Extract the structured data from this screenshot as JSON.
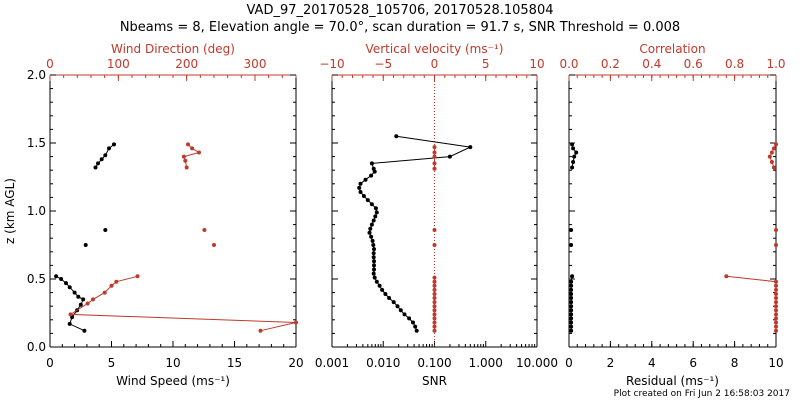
{
  "title_line1": "VAD_97_20170528_105706, 20170528.105804",
  "title_line2": "Nbeams = 8, Elevation angle = 70.0°, scan duration = 91.7 s, SNR Threshold = 0.008",
  "footer": "Plot created on Fri Jun  2 16:58:03 2017",
  "colors": {
    "primary": "#000000",
    "secondary": "#c0392b"
  },
  "chart_data": [
    {
      "type": "line",
      "ylabel": "z (km AGL)",
      "ylim": [
        0,
        2
      ],
      "yticks": [
        "0.0",
        "0.5",
        "1.0",
        "1.5",
        "2.0"
      ],
      "xlabel_bottom": "Wind Speed (ms⁻¹)",
      "xlim_bottom": [
        0,
        20
      ],
      "xticks_bottom": [
        "0",
        "5",
        "10",
        "15",
        "20"
      ],
      "xlabel_top": "Wind Direction (deg)",
      "xlim_top": [
        0,
        360
      ],
      "xticks_top": [
        "0",
        "100",
        "200",
        "300"
      ],
      "series": [
        {
          "axis": "bottom",
          "color": "#000000",
          "segments": [
            [
              [
                2.8,
                0.12
              ],
              [
                1.6,
                0.17
              ],
              [
                1.8,
                0.22
              ],
              [
                2.2,
                0.27
              ],
              [
                2.5,
                0.31
              ],
              [
                2.7,
                0.35
              ],
              [
                2.3,
                0.37
              ],
              [
                2.0,
                0.4
              ],
              [
                1.6,
                0.44
              ],
              [
                1.3,
                0.47
              ],
              [
                0.9,
                0.5
              ],
              [
                0.5,
                0.52
              ]
            ],
            [
              [
                2.9,
                0.75
              ]
            ],
            [
              [
                4.5,
                0.86
              ]
            ],
            [
              [
                3.7,
                1.32
              ],
              [
                3.9,
                1.35
              ],
              [
                4.2,
                1.38
              ],
              [
                4.5,
                1.41
              ],
              [
                4.8,
                1.46
              ],
              [
                5.2,
                1.49
              ]
            ]
          ]
        },
        {
          "axis": "top",
          "color": "#c0392b",
          "segments": [
            [
              [
                308,
                0.12
              ],
              [
                360,
                0.18
              ],
              [
                30,
                0.24
              ],
              [
                55,
                0.32
              ],
              [
                63,
                0.35
              ],
              [
                80,
                0.4
              ],
              [
                90,
                0.45
              ],
              [
                97,
                0.48
              ],
              [
                128,
                0.52
              ]
            ],
            [
              [
                240,
                0.75
              ]
            ],
            [
              [
                226,
                0.86
              ]
            ],
            [
              [
                200,
                1.32
              ],
              [
                198,
                1.37
              ],
              [
                196,
                1.4
              ],
              [
                218,
                1.43
              ],
              [
                208,
                1.46
              ],
              [
                202,
                1.49
              ]
            ]
          ]
        }
      ]
    },
    {
      "type": "line",
      "ylim": [
        0,
        2
      ],
      "xlabel_bottom": "SNR",
      "xscale_bottom": "log",
      "xlim_bottom": [
        0.001,
        10
      ],
      "xticks_bottom": [
        "0.001",
        "0.010",
        "0.100",
        "1.000",
        "10.000"
      ],
      "xlabel_top": "Vertical velocity (ms⁻¹)",
      "xlim_top": [
        -10,
        10
      ],
      "xticks_top": [
        "−10",
        "−5",
        "0",
        "5",
        "10"
      ],
      "reference_line": {
        "axis": "top",
        "x": 0,
        "style": "dotted"
      },
      "series": [
        {
          "axis": "bottom",
          "color": "#000000",
          "segments": [
            [
              [
                0.045,
                0.12
              ],
              [
                0.042,
                0.15
              ],
              [
                0.038,
                0.18
              ],
              [
                0.032,
                0.21
              ],
              [
                0.026,
                0.24
              ],
              [
                0.022,
                0.27
              ],
              [
                0.019,
                0.3
              ],
              [
                0.016,
                0.33
              ],
              [
                0.013,
                0.36
              ],
              [
                0.011,
                0.39
              ],
              [
                0.0095,
                0.42
              ],
              [
                0.0085,
                0.45
              ],
              [
                0.0075,
                0.48
              ],
              [
                0.0068,
                0.51
              ],
              [
                0.0065,
                0.54
              ],
              [
                0.0066,
                0.57
              ],
              [
                0.0066,
                0.6
              ],
              [
                0.0066,
                0.63
              ],
              [
                0.0065,
                0.66
              ],
              [
                0.0065,
                0.69
              ],
              [
                0.0066,
                0.72
              ],
              [
                0.0064,
                0.75
              ],
              [
                0.0062,
                0.78
              ],
              [
                0.0058,
                0.81
              ],
              [
                0.0054,
                0.84
              ],
              [
                0.0056,
                0.87
              ],
              [
                0.006,
                0.9
              ],
              [
                0.0065,
                0.93
              ],
              [
                0.007,
                0.96
              ],
              [
                0.0075,
                0.99
              ],
              [
                0.0072,
                1.02
              ],
              [
                0.006,
                1.05
              ],
              [
                0.005,
                1.08
              ],
              [
                0.0042,
                1.11
              ],
              [
                0.0036,
                1.14
              ],
              [
                0.0034,
                1.17
              ],
              [
                0.0036,
                1.2
              ],
              [
                0.0045,
                1.23
              ],
              [
                0.0058,
                1.26
              ],
              [
                0.0068,
                1.29
              ],
              [
                0.0065,
                1.31
              ],
              [
                0.006,
                1.35
              ],
              [
                0.2,
                1.4
              ],
              [
                0.5,
                1.47
              ],
              [
                0.018,
                1.55
              ]
            ]
          ]
        },
        {
          "axis": "top",
          "color": "#c0392b",
          "segments": [
            [
              [
                0,
                0.12
              ],
              [
                0,
                0.15
              ],
              [
                0,
                0.18
              ],
              [
                0,
                0.21
              ],
              [
                0,
                0.24
              ],
              [
                0,
                0.27
              ],
              [
                0,
                0.3
              ],
              [
                0,
                0.33
              ],
              [
                0,
                0.36
              ],
              [
                0,
                0.39
              ],
              [
                0,
                0.42
              ],
              [
                0,
                0.45
              ],
              [
                0,
                0.48
              ],
              [
                0,
                0.51
              ]
            ],
            [
              [
                0,
                0.75
              ]
            ],
            [
              [
                0,
                0.86
              ]
            ],
            [
              [
                0,
                1.31
              ],
              [
                0,
                1.35
              ],
              [
                0,
                1.4
              ],
              [
                0,
                1.43
              ],
              [
                0,
                1.47
              ]
            ]
          ]
        }
      ]
    },
    {
      "type": "line",
      "ylim": [
        0,
        2
      ],
      "xlabel_bottom": "Residual (ms⁻¹)",
      "xlim_bottom": [
        0,
        10
      ],
      "xticks_bottom": [
        "0",
        "2",
        "4",
        "6",
        "8",
        "10"
      ],
      "xlabel_top": "Correlation",
      "xlim_top": [
        0,
        1
      ],
      "xticks_top": [
        "0.0",
        "0.2",
        "0.4",
        "0.6",
        "0.8",
        "1.0"
      ],
      "series": [
        {
          "axis": "bottom",
          "color": "#000000",
          "segments": [
            [
              [
                0.1,
                0.12
              ],
              [
                0.1,
                0.15
              ],
              [
                0.1,
                0.18
              ],
              [
                0.1,
                0.21
              ],
              [
                0.1,
                0.24
              ],
              [
                0.1,
                0.27
              ],
              [
                0.1,
                0.3
              ],
              [
                0.1,
                0.33
              ],
              [
                0.1,
                0.36
              ],
              [
                0.1,
                0.39
              ],
              [
                0.1,
                0.42
              ],
              [
                0.1,
                0.45
              ],
              [
                0.1,
                0.48
              ],
              [
                0.15,
                0.52
              ]
            ],
            [
              [
                0.1,
                0.75
              ]
            ],
            [
              [
                0.1,
                0.86
              ]
            ],
            [
              [
                0.15,
                1.32
              ],
              [
                0.2,
                1.36
              ],
              [
                0.25,
                1.4
              ],
              [
                0.35,
                1.43
              ],
              [
                0.2,
                1.46
              ],
              [
                0.15,
                1.49
              ]
            ]
          ]
        },
        {
          "axis": "top",
          "color": "#c0392b",
          "segments": [
            [
              [
                1.0,
                0.12
              ],
              [
                1.0,
                0.15
              ],
              [
                1.0,
                0.18
              ],
              [
                1.0,
                0.21
              ],
              [
                1.0,
                0.24
              ],
              [
                1.0,
                0.27
              ],
              [
                1.0,
                0.3
              ],
              [
                1.0,
                0.33
              ],
              [
                1.0,
                0.36
              ],
              [
                1.0,
                0.39
              ],
              [
                1.0,
                0.42
              ],
              [
                1.0,
                0.45
              ],
              [
                1.0,
                0.48
              ],
              [
                0.76,
                0.52
              ]
            ],
            [
              [
                1.0,
                0.75
              ]
            ],
            [
              [
                1.0,
                0.86
              ]
            ],
            [
              [
                0.99,
                1.32
              ],
              [
                0.98,
                1.36
              ],
              [
                0.97,
                1.4
              ],
              [
                0.98,
                1.43
              ],
              [
                0.99,
                1.46
              ],
              [
                1.0,
                1.49
              ]
            ]
          ]
        }
      ]
    }
  ]
}
